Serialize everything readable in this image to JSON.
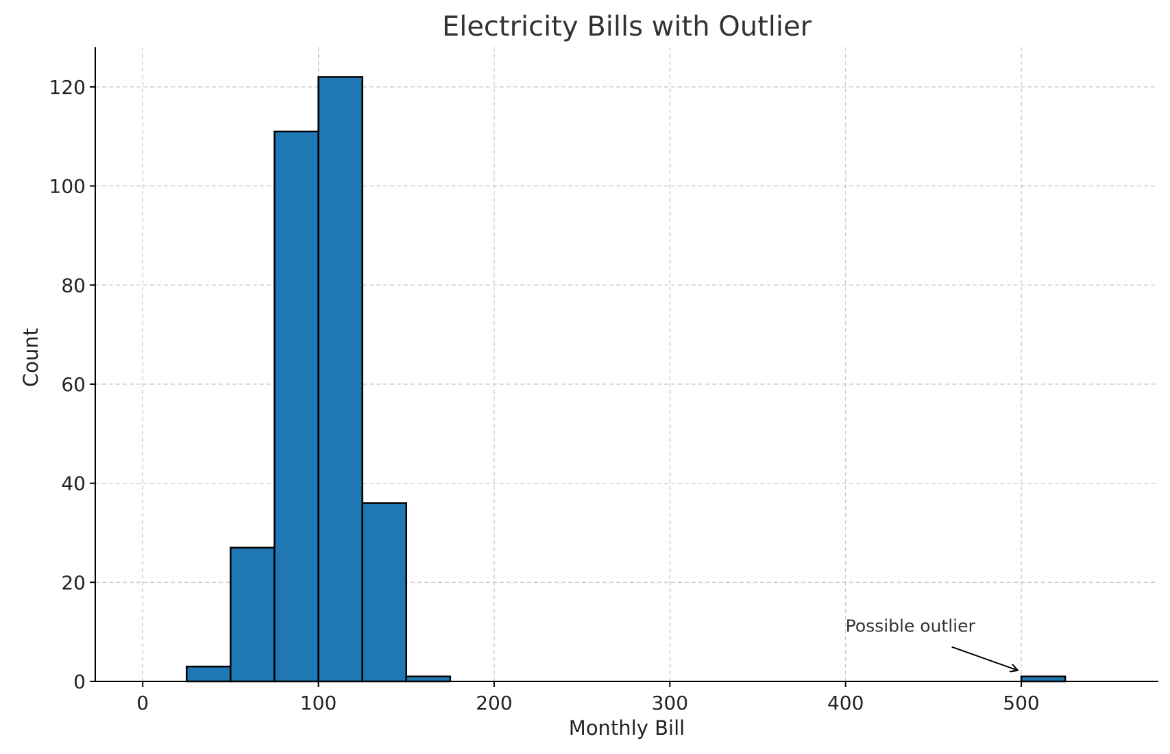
{
  "chart_data": {
    "type": "histogram",
    "title": "Electricity Bills with Outlier",
    "xlabel": "Monthly Bill",
    "ylabel": "Count",
    "xlim": [
      -27,
      578
    ],
    "ylim": [
      0,
      128
    ],
    "xticks": [
      0,
      100,
      200,
      300,
      400,
      500
    ],
    "yticks": [
      0,
      20,
      40,
      60,
      80,
      100,
      120
    ],
    "grid": true,
    "bar_color": "#1f77b4",
    "bin_width": 25,
    "bins": [
      {
        "x0": 25,
        "x1": 50,
        "count": 3
      },
      {
        "x0": 50,
        "x1": 75,
        "count": 27
      },
      {
        "x0": 75,
        "x1": 100,
        "count": 111
      },
      {
        "x0": 100,
        "x1": 125,
        "count": 122
      },
      {
        "x0": 125,
        "x1": 150,
        "count": 36
      },
      {
        "x0": 150,
        "x1": 175,
        "count": 1
      },
      {
        "x0": 500,
        "x1": 525,
        "count": 1
      }
    ],
    "annotation": {
      "text": "Possible outlier",
      "point": [
        500,
        2
      ],
      "text_at": [
        400,
        10
      ]
    }
  }
}
